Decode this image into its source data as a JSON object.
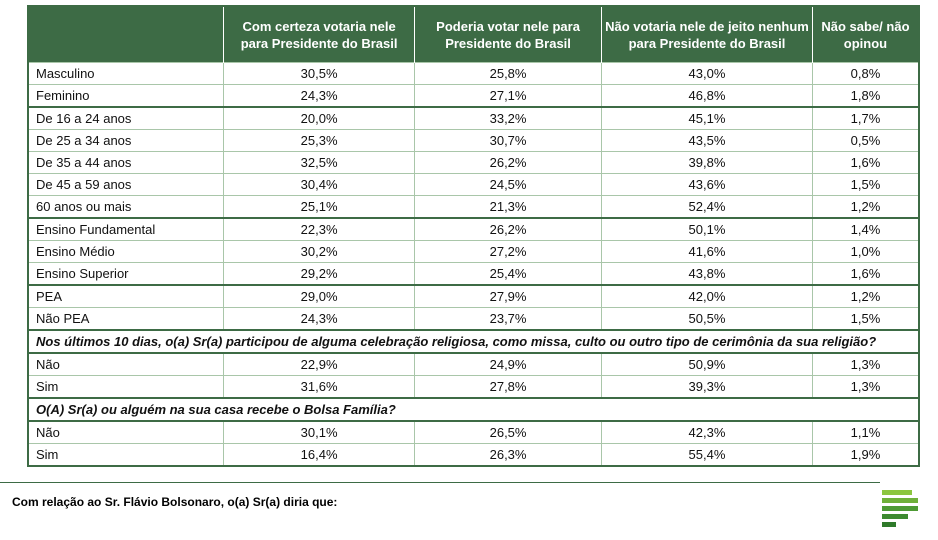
{
  "table": {
    "header": [
      "",
      "Com certeza votaria nele para Presidente do Brasil",
      "Poderia votar nele para Presidente do Brasil",
      "Não votaria nele de jeito nenhum para Presidente do Brasil",
      "Não sabe/ não opinou"
    ],
    "rows": [
      [
        "Masculino",
        "30,5%",
        "25,8%",
        "43,0%",
        "0,8%"
      ],
      [
        "Feminino",
        "24,3%",
        "27,1%",
        "46,8%",
        "1,8%"
      ],
      [
        "De 16 a 24 anos",
        "20,0%",
        "33,2%",
        "45,1%",
        "1,7%"
      ],
      [
        "De 25 a 34 anos",
        "25,3%",
        "30,7%",
        "43,5%",
        "0,5%"
      ],
      [
        "De 35 a 44 anos",
        "32,5%",
        "26,2%",
        "39,8%",
        "1,6%"
      ],
      [
        "De 45 a 59 anos",
        "30,4%",
        "24,5%",
        "43,6%",
        "1,5%"
      ],
      [
        "60 anos ou mais",
        "25,1%",
        "21,3%",
        "52,4%",
        "1,2%"
      ],
      [
        "Ensino Fundamental",
        "22,3%",
        "26,2%",
        "50,1%",
        "1,4%"
      ],
      [
        "Ensino Médio",
        "30,2%",
        "27,2%",
        "41,6%",
        "1,0%"
      ],
      [
        "Ensino Superior",
        "29,2%",
        "25,4%",
        "43,8%",
        "1,6%"
      ],
      [
        "PEA",
        "29,0%",
        "27,9%",
        "42,0%",
        "1,2%"
      ],
      [
        "Não PEA",
        "24,3%",
        "23,7%",
        "50,5%",
        "1,5%"
      ],
      [
        "Nos últimos 10 dias, o(a) Sr(a) participou de alguma celebração religiosa, como missa, culto ou outro tipo de cerimônia da sua religião?"
      ],
      [
        "Não",
        "22,9%",
        "24,9%",
        "50,9%",
        "1,3%"
      ],
      [
        "Sim",
        "31,6%",
        "27,8%",
        "39,3%",
        "1,3%"
      ],
      [
        "O(A) Sr(a) ou alguém na sua casa recebe o Bolsa Família?"
      ],
      [
        "Não",
        "30,1%",
        "26,5%",
        "42,3%",
        "1,1%"
      ],
      [
        "Sim",
        "16,4%",
        "26,3%",
        "55,4%",
        "1,9%"
      ]
    ]
  },
  "footer": "Com relação ao Sr. Flávio Bolsonaro, o(a) Sr(a) diria que:"
}
